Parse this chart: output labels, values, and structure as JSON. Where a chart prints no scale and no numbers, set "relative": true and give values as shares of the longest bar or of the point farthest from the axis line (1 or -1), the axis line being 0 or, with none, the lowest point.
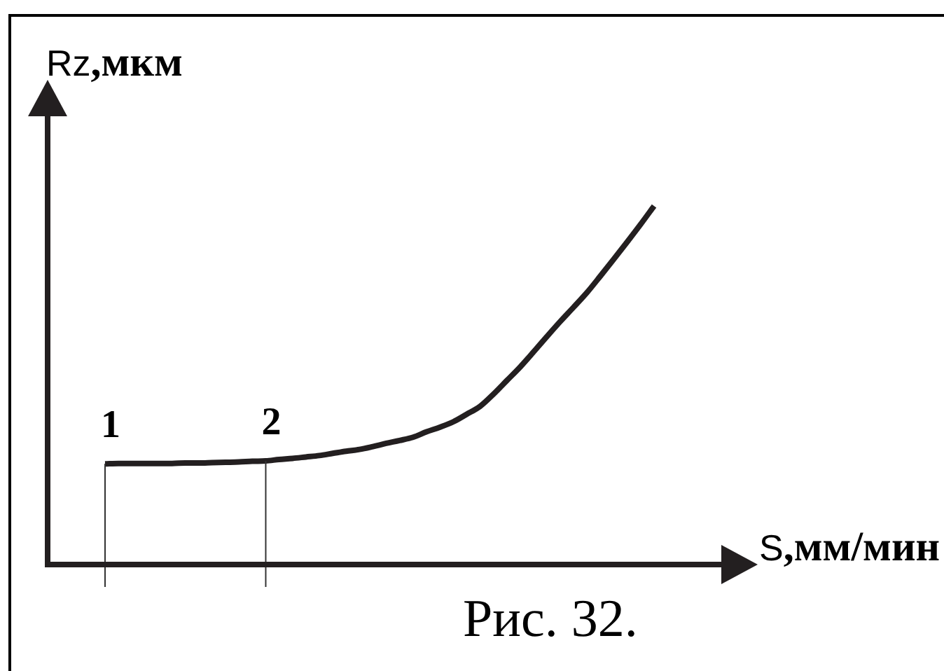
{
  "chart_data": {
    "type": "line",
    "xlabel": "S,мм/мин",
    "ylabel": "Rz,мкм",
    "annotations": [
      {
        "text": "1",
        "y": 0.281
      },
      {
        "text": "2",
        "y": 0.289
      },
      "Рис. 32."
    ],
    "categories": [
      null,
      null,
      null,
      null,
      null,
      null,
      null,
      null,
      null,
      null,
      null,
      null,
      null,
      null,
      null,
      null,
      null,
      null,
      null,
      null,
      null,
      null,
      null,
      null,
      null,
      null,
      null,
      null,
      null,
      null,
      null,
      null,
      null,
      null,
      null,
      null,
      null,
      null,
      null,
      null,
      null,
      null
    ],
    "relative": true,
    "color": "#231f20",
    "values": [
      0.281,
      0.282,
      0.282,
      0.282,
      0.282,
      0.282,
      0.283,
      0.283,
      0.284,
      0.285,
      0.286,
      0.288,
      0.289,
      0.293,
      0.296,
      0.3,
      0.304,
      0.31,
      0.316,
      0.321,
      0.329,
      0.338,
      0.346,
      0.355,
      0.37,
      0.383,
      0.398,
      0.419,
      0.441,
      0.475,
      0.513,
      0.551,
      0.593,
      0.636,
      0.678,
      0.718,
      0.759,
      0.805,
      0.852,
      0.9,
      0.949,
      1.0
    ]
  }
}
